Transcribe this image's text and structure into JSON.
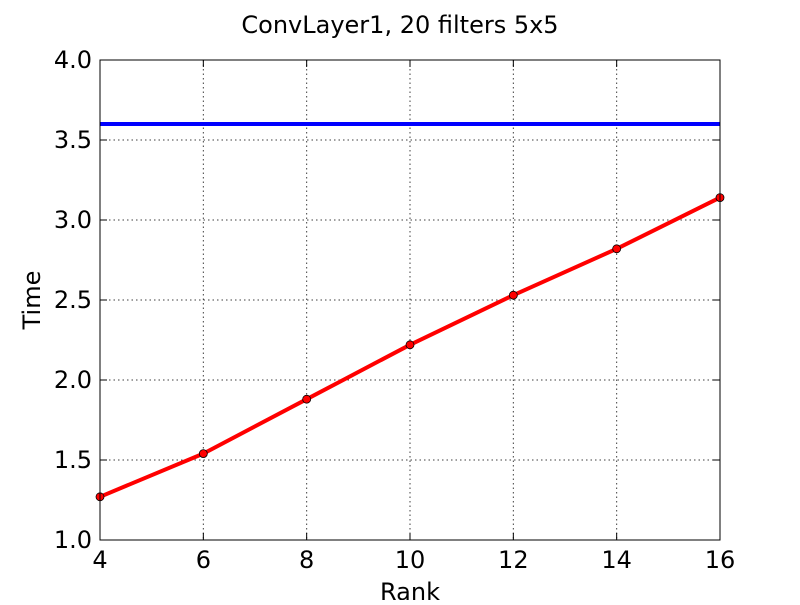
{
  "chart_data": {
    "type": "line",
    "title": "ConvLayer1, 20 filters 5x5",
    "xlabel": "Rank",
    "ylabel": "Time",
    "xlim": [
      4,
      16
    ],
    "ylim": [
      1.0,
      4.0
    ],
    "xticks": [
      4,
      6,
      8,
      10,
      12,
      14,
      16
    ],
    "yticks": [
      1.0,
      1.5,
      2.0,
      2.5,
      3.0,
      3.5,
      4.0
    ],
    "xtick_labels": [
      "4",
      "6",
      "8",
      "10",
      "12",
      "14",
      "16"
    ],
    "ytick_labels": [
      "1.0",
      "1.5",
      "2.0",
      "2.5",
      "3.0",
      "3.5",
      "4.0"
    ],
    "grid": true,
    "series": [
      {
        "x": [
          4,
          16
        ],
        "y": [
          3.6,
          3.6
        ],
        "color": "#0000ff",
        "markers": false
      },
      {
        "x": [
          4,
          6,
          8,
          10,
          12,
          14,
          16
        ],
        "y": [
          1.27,
          1.54,
          1.88,
          2.22,
          2.53,
          2.82,
          3.14
        ],
        "color": "#ff0000",
        "markers": true
      }
    ]
  }
}
